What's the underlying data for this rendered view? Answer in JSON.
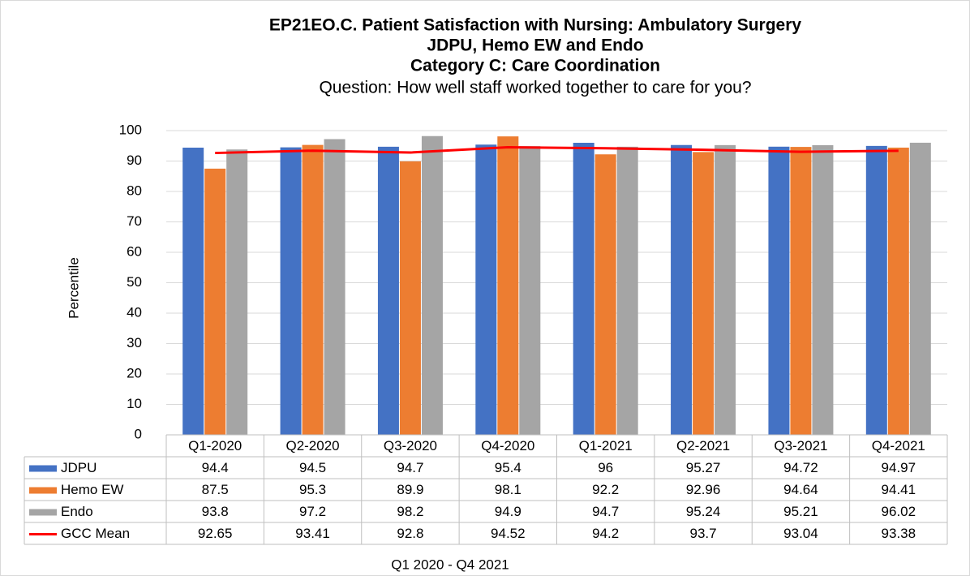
{
  "chart_data": {
    "type": "bar",
    "title": [
      "EP21EO.C. Patient Satisfaction with Nursing: Ambulatory Surgery",
      "JDPU, Hemo EW and Endo",
      "Category C: Care Coordination"
    ],
    "subtitle": "Question: How well staff worked together to care for you?",
    "y_label": "Percentile",
    "x_label": "Q1 2020 - Q4 2021",
    "categories": [
      "Q1-2020",
      "Q2-2020",
      "Q3-2020",
      "Q4-2020",
      "Q1-2021",
      "Q2-2021",
      "Q3-2021",
      "Q4-2021"
    ],
    "series": [
      {
        "name": "JDPU",
        "color": "#4472c4",
        "values": [
          94.4,
          94.5,
          94.7,
          95.4,
          96,
          95.27,
          94.72,
          94.97
        ]
      },
      {
        "name": "Hemo EW",
        "color": "#ed7d31",
        "values": [
          87.5,
          95.3,
          89.9,
          98.1,
          92.2,
          92.96,
          94.64,
          94.41
        ]
      },
      {
        "name": "Endo",
        "color": "#a5a5a5",
        "values": [
          93.8,
          97.2,
          98.2,
          94.9,
          94.7,
          95.24,
          95.21,
          96.02
        ]
      },
      {
        "name": "GCC Mean",
        "color": "#ff0000",
        "type": "line",
        "values": [
          92.65,
          93.41,
          92.8,
          94.52,
          94.2,
          93.7,
          93.04,
          93.38
        ]
      }
    ],
    "ylim": [
      0,
      100
    ],
    "yticks": [
      0,
      10,
      20,
      30,
      40,
      50,
      60,
      70,
      80,
      90,
      100
    ],
    "grid": true,
    "data_table": true
  }
}
